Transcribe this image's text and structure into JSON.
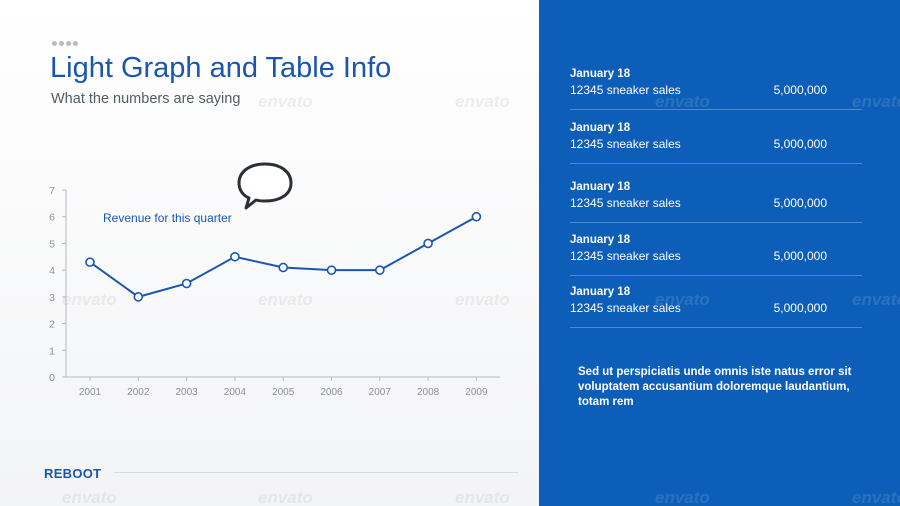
{
  "slide": {
    "title": "Light Graph and Table Info",
    "subtitle": "What the numbers are saying",
    "brand": "REBOOT",
    "speech_bubble_icon": "speech-bubble-icon",
    "watermark": "envato"
  },
  "chart_data": {
    "type": "line",
    "title": "",
    "xlabel": "",
    "ylabel": "",
    "annotation": "Revenue for this quarter",
    "x": [
      "2001",
      "2002",
      "2003",
      "2004",
      "2005",
      "2006",
      "2007",
      "2008",
      "2009"
    ],
    "series": [
      {
        "values": [
          4.3,
          3.0,
          3.5,
          4.5,
          4.1,
          4.0,
          4.0,
          5.0,
          6.0
        ]
      }
    ],
    "ylim": [
      0,
      7
    ],
    "yticks": [
      "0",
      "1",
      "2",
      "3",
      "4",
      "5",
      "6",
      "7"
    ],
    "grid": false,
    "line_color": "#1a56b0"
  },
  "sales_table": {
    "rows": [
      {
        "date": "January 18",
        "item": "12345 sneaker sales",
        "amount": "5,000,000"
      },
      {
        "date": "January 18",
        "item": "12345 sneaker sales",
        "amount": "5,000,000"
      },
      {
        "date": "January 18",
        "item": "12345 sneaker sales",
        "amount": "5,000,000"
      },
      {
        "date": "January 18",
        "item": "12345 sneaker sales",
        "amount": "5,000,000"
      },
      {
        "date": "January 18",
        "item": "12345 sneaker sales",
        "amount": "5,000,000"
      }
    ],
    "note": "Sed ut perspiciatis unde omnis iste natus error sit voluptatem accusantium doloremque laudantium, totam rem"
  },
  "colors": {
    "accent_blue": "#1a56b0",
    "panel_blue": "#0d5eb8",
    "axis_gray": "#b5b9c0"
  }
}
